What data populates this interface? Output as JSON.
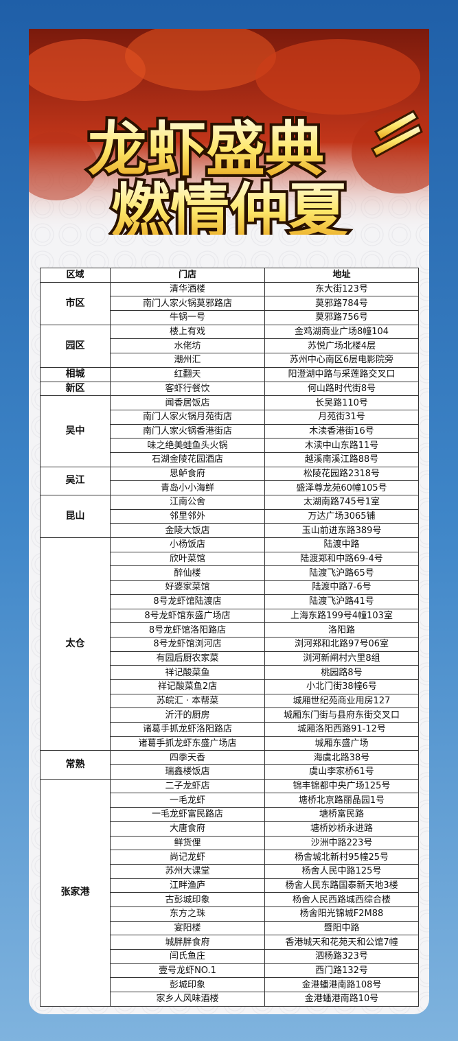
{
  "header": {
    "title_line1": "龙虾盛典",
    "title_line2": "燃情仲夏"
  },
  "table": {
    "columns": [
      "区域",
      "门店",
      "地址"
    ],
    "groups": [
      {
        "region": "市区",
        "rows": [
          [
            "清华酒楼",
            "东大街123号"
          ],
          [
            "南门人家火锅莫邪路店",
            "莫邪路784号"
          ],
          [
            "牛锅一号",
            "莫邪路756号"
          ]
        ]
      },
      {
        "region": "园区",
        "rows": [
          [
            "楼上有戏",
            "金鸡湖商业广场8幢104"
          ],
          [
            "水佬坊",
            "苏悦广场北楼4层"
          ],
          [
            "潮州汇",
            "苏州中心南区6层电影院旁"
          ]
        ]
      },
      {
        "region": "相城",
        "rows": [
          [
            "红翻天",
            "阳澄湖中路与采莲路交叉口"
          ]
        ]
      },
      {
        "region": "新区",
        "rows": [
          [
            "客虾行餐饮",
            "何山路时代街8号"
          ]
        ]
      },
      {
        "region": "吴中",
        "rows": [
          [
            "闻香居饭店",
            "长吴路110号"
          ],
          [
            "南门人家火锅月苑街店",
            "月苑街31号"
          ],
          [
            "南门人家火锅香港街店",
            "木渎香港街16号"
          ],
          [
            "味之绝美蛙鱼头火锅",
            "木渎中山东路11号"
          ],
          [
            "石湖金陵花园酒店",
            "越溪南溪江路88号"
          ]
        ]
      },
      {
        "region": "吴江",
        "rows": [
          [
            "思鲈食府",
            "松陵花园路2318号"
          ],
          [
            "青岛小小海鲜",
            "盛泽尊龙苑60幢105号"
          ]
        ]
      },
      {
        "region": "昆山",
        "rows": [
          [
            "江南公舍",
            "太湖南路745号1室"
          ],
          [
            "邻里邻外",
            "万达广场3065铺"
          ],
          [
            "金陵大饭店",
            "玉山前进东路389号"
          ]
        ]
      },
      {
        "region": "太仓",
        "rows": [
          [
            "小杨饭店",
            "陆渡中路"
          ],
          [
            "欣叶菜馆",
            "陆渡郑和中路69-4号"
          ],
          [
            "醉仙楼",
            "陆渡飞沪路65号"
          ],
          [
            "好婆家菜馆",
            "陆渡中路7-6号"
          ],
          [
            "8号龙虾馆陆渡店",
            "陆渡飞沪路41号"
          ],
          [
            "8号龙虾馆东盛广场店",
            "上海东路199号4幢103室"
          ],
          [
            "8号龙虾馆洛阳路店",
            "洛阳路"
          ],
          [
            "8号龙虾馆浏河店",
            "浏河郑和北路97号06室"
          ],
          [
            "有园后厨农家菜",
            "浏河新闸村六里8组"
          ],
          [
            "祥记酸菜鱼",
            "桃园路8号"
          ],
          [
            "祥记酸菜鱼2店",
            "小北门街38幢6号"
          ],
          [
            "苏皖汇 · 本帮菜",
            "城厢世纪苑商业用房127"
          ],
          [
            "沂汗的厨房",
            "城厢东门街与县府东街交叉口"
          ],
          [
            "诸葛手抓龙虾洛阳路店",
            "城厢洛阳西路91-12号"
          ],
          [
            "诸葛手抓龙虾东盛广场店",
            "城厢东盛广场"
          ]
        ]
      },
      {
        "region": "常熟",
        "rows": [
          [
            "四季天香",
            "海虞北路38号"
          ],
          [
            "瑞鑫楼饭店",
            "虞山李家桥61号"
          ]
        ]
      },
      {
        "region": "张家港",
        "rows": [
          [
            "二子龙虾店",
            "锦丰锦都中央广场125号"
          ],
          [
            "一毛龙虾",
            "塘桥北京路丽晶园1号"
          ],
          [
            "一毛龙虾富民路店",
            "塘桥富民路"
          ],
          [
            "大唐食府",
            "塘桥妙桥永进路"
          ],
          [
            "鲜货俚",
            "沙洲中路223号"
          ],
          [
            "尚记龙虾",
            "杨舍城北新村95幢25号"
          ],
          [
            "苏州大课堂",
            "杨舍人民中路125号"
          ],
          [
            "江畔渔庐",
            "杨舍人民东路国泰新天地3楼"
          ],
          [
            "古彭城印象",
            "杨舍人民西路城西综合楼"
          ],
          [
            "东方之珠",
            "杨舍阳光锦城F2M88"
          ],
          [
            "宴阳楼",
            "暨阳中路"
          ],
          [
            "城胖胖食府",
            "香港城天和花苑天和公馆7幢"
          ],
          [
            "闫氏鱼庄",
            "泗杨路323号"
          ],
          [
            "壹号龙虾NO.1",
            "西门路132号"
          ],
          [
            "彭城印象",
            "金港蟠港南路108号"
          ],
          [
            "家乡人风味酒楼",
            "金港蟠港南路10号"
          ]
        ]
      }
    ]
  }
}
